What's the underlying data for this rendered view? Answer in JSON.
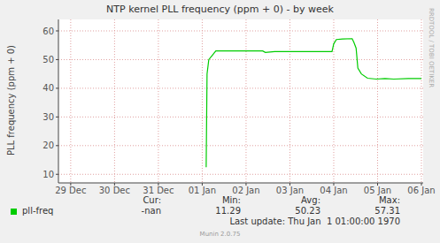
{
  "chart_data": {
    "type": "line",
    "title": "NTP kernel PLL frequency (ppm + 0) - by week",
    "ylabel": "PLL frequency (ppm + 0)",
    "x": [
      3.09,
      3.11,
      3.15,
      3.23,
      3.31,
      3.64,
      4.0,
      4.38,
      4.44,
      4.65,
      5.05,
      5.5,
      5.96,
      6.0,
      6.06,
      6.2,
      6.42,
      6.46,
      6.51,
      6.55,
      6.63,
      6.77,
      6.97,
      7.17,
      7.37,
      7.7,
      8.0
    ],
    "series": [
      {
        "name": "pll-freq",
        "color": "#00cc00",
        "values": [
          12.5,
          45,
          50,
          51.5,
          53,
          53,
          53,
          53,
          52.5,
          52.8,
          52.8,
          52.8,
          52.8,
          55.5,
          57,
          57.2,
          57.3,
          56,
          54,
          47,
          45,
          43.5,
          43.2,
          43.4,
          43.2,
          43.4,
          43.4
        ]
      }
    ],
    "xlim": [
      -0.28,
      8.04
    ],
    "xticks": [
      {
        "value": 0,
        "label": "29 Dec"
      },
      {
        "value": 1,
        "label": "30 Dec"
      },
      {
        "value": 2,
        "label": "31 Dec"
      },
      {
        "value": 3,
        "label": "01 Jan"
      },
      {
        "value": 4,
        "label": "02 Jan"
      },
      {
        "value": 5,
        "label": "03 Jan"
      },
      {
        "value": 6,
        "label": "04 Jan"
      },
      {
        "value": 7,
        "label": "05 Jan"
      },
      {
        "value": 8,
        "label": "06 Jan"
      }
    ],
    "ylim": [
      7,
      64
    ],
    "yticks": [
      10,
      20,
      30,
      40,
      50,
      60
    ],
    "grid": true,
    "stats": [
      {
        "label": "Cur:",
        "value": "-nan"
      },
      {
        "label": "Min:",
        "value": 11.29
      },
      {
        "label": "Avg:",
        "value": 50.23
      },
      {
        "label": "Max:",
        "value": 57.31
      }
    ],
    "footer": "Last update: Thu Jan  1 01:00:00 1970",
    "credit": "Munin 2.0.75",
    "watermark": "RRDTOOL / TOBI OETIKER"
  }
}
